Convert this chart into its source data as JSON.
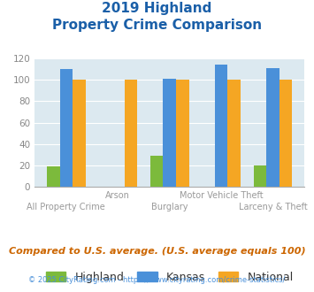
{
  "title_line1": "2019 Highland",
  "title_line2": "Property Crime Comparison",
  "categories": [
    "All Property Crime",
    "Arson",
    "Burglary",
    "Motor Vehicle Theft",
    "Larceny & Theft"
  ],
  "highland": [
    19,
    0,
    29,
    0,
    20
  ],
  "kansas": [
    110,
    0,
    101,
    114,
    111
  ],
  "national": [
    100,
    100,
    100,
    100,
    100
  ],
  "highland_color": "#7cba3c",
  "kansas_color": "#4a90d9",
  "national_color": "#f5a623",
  "ylim": [
    0,
    120
  ],
  "yticks": [
    0,
    20,
    40,
    60,
    80,
    100,
    120
  ],
  "bg_color": "#dce9f0",
  "title_color": "#1a5fa8",
  "footer_text": "Compared to U.S. average. (U.S. average equals 100)",
  "legend_labels": [
    "Highland",
    "Kansas",
    "National"
  ],
  "bar_width": 0.25,
  "row1_indices": [
    1,
    3
  ],
  "row2_indices": [
    0,
    2,
    4
  ],
  "row1_labels": [
    "Arson",
    "Motor Vehicle Theft"
  ],
  "row2_labels": [
    "All Property Crime",
    "Burglary",
    "Larceny & Theft"
  ],
  "xlabel_color": "#999999",
  "footer_color": "#cc6600",
  "copyright_color": "#4a90d9",
  "tick_color": "#888888"
}
